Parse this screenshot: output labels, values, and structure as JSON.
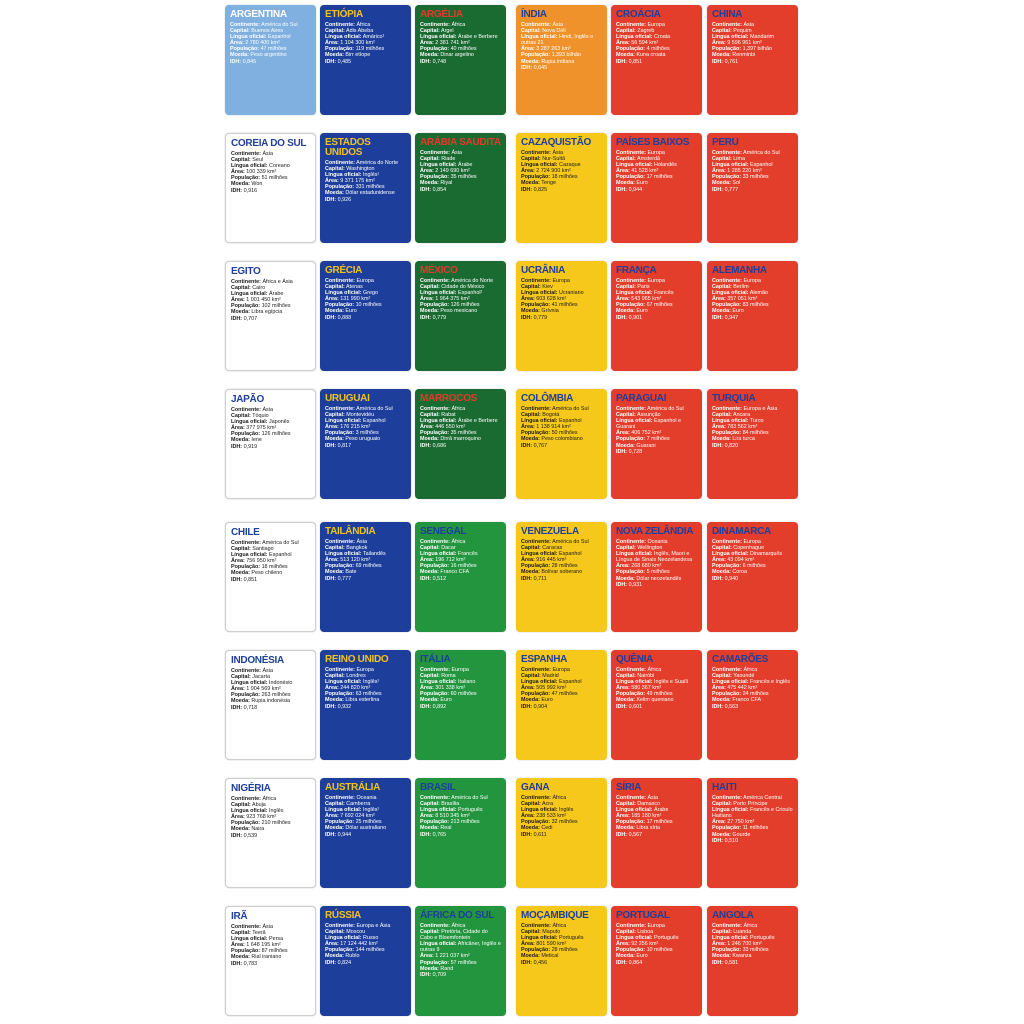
{
  "labels": {
    "continente": "Continente:",
    "capital": "Capital:",
    "lingua": "Língua oficial:",
    "area": "Área:",
    "populacao": "População:",
    "moeda": "Moeda:",
    "idh": "IDH:"
  },
  "colors": {
    "lightblue": {
      "bg": "#7fb0e0",
      "title": "#ffffff",
      "text": "#ffffff"
    },
    "blue": {
      "bg": "#1d3f9b",
      "title": "#f1c21b",
      "text": "#ffffff"
    },
    "darkgreen": {
      "bg": "#1a6b32",
      "title": "#e23a2a",
      "text": "#ffffff"
    },
    "green": {
      "bg": "#23953f",
      "title": "#1e3f9b",
      "text": "#ffffff"
    },
    "orange": {
      "bg": "#f0922b",
      "title": "#1e3f9b",
      "text": "#ffffff"
    },
    "yellow": {
      "bg": "#f7c81c",
      "title": "#1e3f9b",
      "text": "#1a1a1a"
    },
    "red": {
      "bg": "#e23e2b",
      "title": "#1e3f9b",
      "text": "#ffffff"
    },
    "white": {
      "bg": "#ffffff",
      "title": "#1e3f9b",
      "text": "#1a1a1a"
    }
  },
  "cards": [
    {
      "name": "Argentina",
      "color": "lightblue",
      "continente": "América do Sul",
      "capital": "Buenos Aires",
      "lingua": "Espanhol",
      "area": "2 780 400 km²",
      "populacao": "47 milhões",
      "moeda": "Peso argentino",
      "idh": "0,845"
    },
    {
      "name": "Etiópia",
      "color": "blue",
      "continente": "África",
      "capital": "Adis Abeba",
      "lingua": "Amárico¹",
      "area": "1 104 300 km²",
      "populacao": "119 milhões",
      "moeda": "Birr etíope",
      "idh": "0,485"
    },
    {
      "name": "Argélia",
      "color": "darkgreen",
      "continente": "África",
      "capital": "Argel",
      "lingua": "Árabe e Berbere",
      "area": "2 381 741 km²",
      "populacao": "40 milhões",
      "moeda": "Dinar argelino",
      "idh": "0,748"
    },
    {
      "name": "Índia",
      "color": "orange",
      "continente": "Ásia",
      "capital": "Nova Déli",
      "lingua": "Hindi, Inglês e outras 21",
      "area": "3 287 263 km²",
      "populacao": "1,393 bilhão",
      "moeda": "Rupia indiana",
      "idh": "0,645"
    },
    {
      "name": "Croácia",
      "color": "red",
      "continente": "Europa",
      "capital": "Zagreb",
      "lingua": "Croata",
      "area": "56 594 km²",
      "populacao": "4 milhões",
      "moeda": "Kuna croata",
      "idh": "0,851"
    },
    {
      "name": "China",
      "color": "red",
      "continente": "Ásia",
      "capital": "Pequim",
      "lingua": "Mandarim",
      "area": "9 596 961 km²",
      "populacao": "1,397 bilhão",
      "moeda": "Renminbi",
      "idh": "0,761"
    },
    {
      "name": "Coreia do Sul",
      "color": "white",
      "continente": "Ásia",
      "capital": "Seul",
      "lingua": "Coreano",
      "area": "100 339 km²",
      "populacao": "51 milhões",
      "moeda": "Won",
      "idh": "0,916"
    },
    {
      "name": "Estados Unidos",
      "color": "blue",
      "continente": "América do Norte",
      "capital": "Washington",
      "lingua": "Inglês¹",
      "area": "9 371 175 km²",
      "populacao": "331 milhões",
      "moeda": "Dólar estadunidense",
      "idh": "0,926"
    },
    {
      "name": "Arábia Saudita",
      "color": "darkgreen",
      "continente": "Ásia",
      "capital": "Riade",
      "lingua": "Árabe",
      "area": "2 149 690 km²",
      "populacao": "35 milhões",
      "moeda": "Riyal",
      "idh": "0,854"
    },
    {
      "name": "Cazaquistão",
      "color": "yellow",
      "continente": "Ásia",
      "capital": "Nur-Sultã",
      "lingua": "Cazaque",
      "area": "2 724 900 km²",
      "populacao": "18 milhões",
      "moeda": "Tenge",
      "idh": "0,825"
    },
    {
      "name": "Países Baixos",
      "color": "red",
      "continente": "Europa",
      "capital": "Amsterdã",
      "lingua": "Holandês",
      "area": "41 528 km²",
      "populacao": "17 milhões",
      "moeda": "Euro",
      "idh": "0,944"
    },
    {
      "name": "Peru",
      "color": "red",
      "continente": "América do Sul",
      "capital": "Lima",
      "lingua": "Espanhol",
      "area": "1 285 220 km²",
      "populacao": "33 milhões",
      "moeda": "Sol",
      "idh": "0,777"
    },
    {
      "name": "Egito",
      "color": "white",
      "continente": "África e Ásia",
      "capital": "Cairo",
      "lingua": "Árabe",
      "area": "1 001 450 km²",
      "populacao": "102 milhões",
      "moeda": "Libra egípcia",
      "idh": "0,707"
    },
    {
      "name": "Grécia",
      "color": "blue",
      "continente": "Europa",
      "capital": "Atenas",
      "lingua": "Grego",
      "area": "131 990 km²",
      "populacao": "10 milhões",
      "moeda": "Euro",
      "idh": "0,888"
    },
    {
      "name": "México",
      "color": "darkgreen",
      "continente": "América do Norte",
      "capital": "Cidade do México",
      "lingua": "Espanhol¹",
      "area": "1 964 375 km²",
      "populacao": "126 milhões",
      "moeda": "Peso mexicano",
      "idh": "0,779"
    },
    {
      "name": "Ucrânia",
      "color": "yellow",
      "continente": "Europa",
      "capital": "Kiev",
      "lingua": "Ucraniano",
      "area": "603 628 km²",
      "populacao": "41 milhões",
      "moeda": "Grívnia",
      "idh": "0,779"
    },
    {
      "name": "França",
      "color": "red",
      "continente": "Europa",
      "capital": "Paris",
      "lingua": "Francês",
      "area": "543 965 km²",
      "populacao": "67 milhões",
      "moeda": "Euro",
      "idh": "0,901"
    },
    {
      "name": "Alemanha",
      "color": "red",
      "continente": "Europa",
      "capital": "Berlim",
      "lingua": "Alemão",
      "area": "357 051 km²",
      "populacao": "83 milhões",
      "moeda": "Euro",
      "idh": "0,947"
    },
    {
      "name": "Japão",
      "color": "white",
      "continente": "Ásia",
      "capital": "Tóquio",
      "lingua": "Japonês",
      "area": "377 975 km²",
      "populacao": "126 milhões",
      "moeda": "Iene",
      "idh": "0,919"
    },
    {
      "name": "Uruguai",
      "color": "blue",
      "continente": "América do Sul",
      "capital": "Montevidéu",
      "lingua": "Espanhol",
      "area": "176 215 km²",
      "populacao": "3 milhões",
      "moeda": "Peso uruguaio",
      "idh": "0,817"
    },
    {
      "name": "Marrocos",
      "color": "darkgreen",
      "continente": "África",
      "capital": "Rabat",
      "lingua": "Árabe e Berbere",
      "area": "446 550 km²",
      "populacao": "35 milhões",
      "moeda": "Dirrã marroquino",
      "idh": "0,686"
    },
    {
      "name": "Colômbia",
      "color": "yellow",
      "continente": "América do Sul",
      "capital": "Bogotá",
      "lingua": "Espanhol",
      "area": "1 138 914 km²",
      "populacao": "50 milhões",
      "moeda": "Peso colombiano",
      "idh": "0,767"
    },
    {
      "name": "Paraguai",
      "color": "red",
      "continente": "América do Sul",
      "capital": "Assunção",
      "lingua": "Espanhol e Guarani",
      "area": "406 752 km²",
      "populacao": "7 milhões",
      "moeda": "Guarani",
      "idh": "0,728"
    },
    {
      "name": "Turquia",
      "color": "red",
      "continente": "Europa e Ásia",
      "capital": "Ancara",
      "lingua": "Turco",
      "area": "783 562 km²",
      "populacao": "84 milhões",
      "moeda": "Lira turca",
      "idh": "0,820"
    },
    {
      "name": "Chile",
      "color": "white",
      "continente": "América do Sul",
      "capital": "Santiago",
      "lingua": "Espanhol",
      "area": "756 950 km²",
      "populacao": "18 milhões",
      "moeda": "Peso chileno",
      "idh": "0,851"
    },
    {
      "name": "Tailândia",
      "color": "blue",
      "continente": "Ásia",
      "capital": "Bangkok",
      "lingua": "Tailandês",
      "area": "513 120 km²",
      "populacao": "69 milhões",
      "moeda": "Bate",
      "idh": "0,777"
    },
    {
      "name": "Senegal",
      "color": "green",
      "continente": "África",
      "capital": "Dacar",
      "lingua": "Francês",
      "area": "196 712 km²",
      "populacao": "16 milhões",
      "moeda": "Franco CFA",
      "idh": "0,512"
    },
    {
      "name": "Venezuela",
      "color": "yellow",
      "continente": "América do Sul",
      "capital": "Caracas",
      "lingua": "Espanhol",
      "area": "916 445 km²",
      "populacao": "28 milhões",
      "moeda": "Bolívar soberano",
      "idh": "0,711"
    },
    {
      "name": "Nova Zelândia",
      "color": "red",
      "continente": "Oceania",
      "capital": "Wellington",
      "lingua": "Inglês, Maori e Língua de Sinais Neozelandesa",
      "area": "268 680 km²",
      "populacao": "5 milhões",
      "moeda": "Dólar neozelandês",
      "idh": "0,931"
    },
    {
      "name": "Dinamarca",
      "color": "red",
      "continente": "Europa",
      "capital": "Copenhague",
      "lingua": "Dinamarquês",
      "area": "43 094 km²",
      "populacao": "6 milhões",
      "moeda": "Coroa",
      "idh": "0,940"
    },
    {
      "name": "Indonésia",
      "color": "white",
      "continente": "Ásia",
      "capital": "Jacarta",
      "lingua": "Indonésio",
      "area": "1 904 569 km²",
      "populacao": "263 milhões",
      "moeda": "Rupia indonésia",
      "idh": "0,718"
    },
    {
      "name": "Reino Unido",
      "color": "blue",
      "continente": "Europa",
      "capital": "Londres",
      "lingua": "Inglês¹",
      "area": "244 820 km²",
      "populacao": "63 milhões",
      "moeda": "Libra esterlina",
      "idh": "0,932"
    },
    {
      "name": "Itália",
      "color": "green",
      "continente": "Europa",
      "capital": "Roma",
      "lingua": "Italiano",
      "area": "301 338 km²",
      "populacao": "60 milhões",
      "moeda": "Euro",
      "idh": "0,892"
    },
    {
      "name": "Espanha",
      "color": "yellow",
      "continente": "Europa",
      "capital": "Madrid",
      "lingua": "Espanhol",
      "area": "505 992 km²",
      "populacao": "47 milhões",
      "moeda": "Euro",
      "idh": "0,904"
    },
    {
      "name": "Quênia",
      "color": "red",
      "continente": "África",
      "capital": "Nairóbi",
      "lingua": "Inglês e Suaíli",
      "area": "580 367 km²",
      "populacao": "49 milhões",
      "moeda": "Xelim queniano",
      "idh": "0,601"
    },
    {
      "name": "Camarões",
      "color": "red",
      "continente": "África",
      "capital": "Yaoundé",
      "lingua": "Francês e Inglês",
      "area": "475 442 km²",
      "populacao": "24 milhões",
      "moeda": "Franco CFA",
      "idh": "0,563"
    },
    {
      "name": "Nigéria",
      "color": "white",
      "continente": "África",
      "capital": "Abuja",
      "lingua": "Inglês",
      "area": "923 768 km²",
      "populacao": "210 milhões",
      "moeda": "Naira",
      "idh": "0,539"
    },
    {
      "name": "Austrália",
      "color": "blue",
      "continente": "Oceania",
      "capital": "Camberra",
      "lingua": "Inglês¹",
      "area": "7 692 024 km²",
      "populacao": "25 milhões",
      "moeda": "Dólar australiano",
      "idh": "0,944"
    },
    {
      "name": "Brasil",
      "color": "green",
      "continente": "América do Sul",
      "capital": "Brasília",
      "lingua": "Português",
      "area": "8 510 345 km²",
      "populacao": "213 milhões",
      "moeda": "Real",
      "idh": "0,765"
    },
    {
      "name": "Gana",
      "color": "yellow",
      "continente": "África",
      "capital": "Acra",
      "lingua": "Inglês",
      "area": "238 533 km²",
      "populacao": "32 milhões",
      "moeda": "Cedi",
      "idh": "0,611"
    },
    {
      "name": "Síria",
      "color": "red",
      "continente": "Ásia",
      "capital": "Damasco",
      "lingua": "Árabe",
      "area": "185 180 km²",
      "populacao": "17 milhões",
      "moeda": "Libra síria",
      "idh": "0,567"
    },
    {
      "name": "Haiti",
      "color": "red",
      "continente": "América Central",
      "capital": "Porto Príncipe",
      "lingua": "Francês e Crioulo Haitiano",
      "area": "27 750 km²",
      "populacao": "11 milhões",
      "moeda": "Gourde",
      "idh": "0,510"
    },
    {
      "name": "Irã",
      "color": "white",
      "continente": "Ásia",
      "capital": "Teerã",
      "lingua": "Persa",
      "area": "1 648 195 km²",
      "populacao": "87 milhões",
      "moeda": "Rial iraniano",
      "idh": "0,783"
    },
    {
      "name": "Rússia",
      "color": "blue",
      "continente": "Europa e Ásia",
      "capital": "Moscou",
      "lingua": "Russo",
      "area": "17 124 442 km²",
      "populacao": "144 milhões",
      "moeda": "Rublo",
      "idh": "0,824"
    },
    {
      "name": "África do Sul",
      "color": "green",
      "continente": "África",
      "capital": "Pretória, Cidade do Cabo e Bloemfontein",
      "lingua": "Africâner, Inglês e outras 9",
      "area": "1 221 037 km²",
      "populacao": "57 milhões",
      "moeda": "Rand",
      "idh": "0,709"
    },
    {
      "name": "Moçambique",
      "color": "yellow",
      "continente": "África",
      "capital": "Maputo",
      "lingua": "Português",
      "area": "801 590 km²",
      "populacao": "28 milhões",
      "moeda": "Metical",
      "idh": "0,456"
    },
    {
      "name": "Portugal",
      "color": "red",
      "continente": "Europa",
      "capital": "Lisboa",
      "lingua": "Português",
      "area": "92 256 km²",
      "populacao": "10 milhões",
      "moeda": "Euro",
      "idh": "0,864"
    },
    {
      "name": "Angola",
      "color": "red",
      "continente": "África",
      "capital": "Luanda",
      "lingua": "Português",
      "area": "1 246 700 km²",
      "populacao": "33 milhões",
      "moeda": "Kwanza",
      "idh": "0,581"
    }
  ]
}
